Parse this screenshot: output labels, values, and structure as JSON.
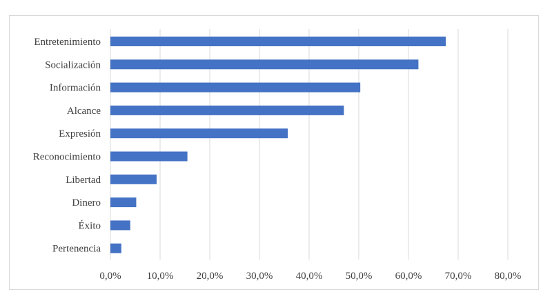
{
  "chart_data": {
    "type": "bar",
    "orientation": "horizontal",
    "title": "",
    "xlabel": "",
    "ylabel": "",
    "categories": [
      "Entretenimiento",
      "Socialización",
      "Información",
      "Alcance",
      "Expresión",
      "Reconocimiento",
      "Libertad",
      "Dinero",
      "Éxito",
      "Pertenencia"
    ],
    "values": [
      67.5,
      62.0,
      50.3,
      47.0,
      35.7,
      15.5,
      9.3,
      5.2,
      4.0,
      2.2
    ],
    "xlim": [
      0,
      80
    ],
    "ticks": [
      "0,0%",
      "10,0%",
      "20,0%",
      "30,0%",
      "40,0%",
      "50,0%",
      "60,0%",
      "70,0%",
      "80,0%"
    ],
    "grid": true,
    "legend": "none",
    "bar_color": "#4472c4"
  }
}
